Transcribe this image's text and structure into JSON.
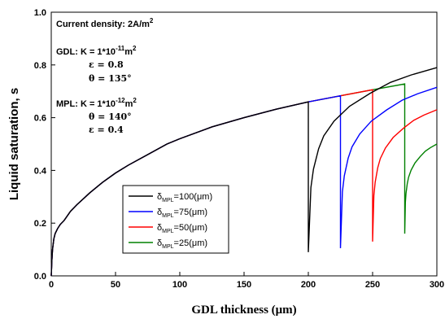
{
  "chart_data": {
    "type": "line",
    "xlabel": "GDL thickness (μm)",
    "ylabel": "Liquid saturation, s",
    "xlim": [
      0,
      300
    ],
    "ylim": [
      0,
      1.0
    ],
    "xticks": [
      "0",
      "50",
      "100",
      "150",
      "200",
      "250",
      "300"
    ],
    "yticks": [
      "0.0",
      "0.2",
      "0.4",
      "0.6",
      "0.8",
      "1.0"
    ],
    "grid": false,
    "legend_position": "bottom-center",
    "annotations": {
      "current_density": "Current density: 2A/m",
      "current_density_sup": "2",
      "gdl_prefix": "GDL: K = 1*10",
      "gdl_k_exp": "-11",
      "gdl_k_unit": "m",
      "gdl_k_unit_exp": "2",
      "gdl_eps": "ε  = 0.8",
      "gdl_theta": "θ = 135°",
      "mpl_prefix": "MPL: K = 1*10",
      "mpl_k_exp": "-12",
      "mpl_k_unit": "m",
      "mpl_k_unit_exp": "2",
      "mpl_theta": "θ = 140°",
      "mpl_eps": "ε = 0.4"
    },
    "legend": [
      {
        "symbol": "δ",
        "sub": "MPL",
        "value": "=100(μm)",
        "color": "#000000"
      },
      {
        "symbol": "δ",
        "sub": "MPL",
        "value": "=75(μm)",
        "color": "#0000ff"
      },
      {
        "symbol": "δ",
        "sub": "MPL",
        "value": "=50(μm)",
        "color": "#ff0000"
      },
      {
        "symbol": "δ",
        "sub": "MPL",
        "value": "=25(μm)",
        "color": "#008000"
      }
    ],
    "series": [
      {
        "delta_mpl": 100,
        "color": "#000000",
        "gdl_end": 200,
        "gdl_end_value": 0.66,
        "drop_value": 0.09,
        "mpl_end_value": 0.79
      },
      {
        "delta_mpl": 75,
        "color": "#0000ff",
        "gdl_end": 225,
        "gdl_end_value": 0.683,
        "drop_value": 0.105,
        "mpl_end_value": 0.715
      },
      {
        "delta_mpl": 50,
        "color": "#ff0000",
        "gdl_end": 250,
        "gdl_end_value": 0.706,
        "drop_value": 0.13,
        "mpl_end_value": 0.63
      },
      {
        "delta_mpl": 25,
        "color": "#008000",
        "gdl_end": 275,
        "gdl_end_value": 0.728,
        "drop_value": 0.16,
        "mpl_end_value": 0.5
      }
    ],
    "gdl_curve": {
      "x": [
        0,
        0.5,
        1,
        2,
        3,
        5,
        7,
        10,
        15,
        20,
        30,
        40,
        50,
        60,
        75,
        90,
        100,
        125,
        150,
        175,
        200,
        225,
        250,
        275
      ],
      "y": [
        0,
        0.06,
        0.1,
        0.14,
        0.16,
        0.18,
        0.195,
        0.21,
        0.245,
        0.27,
        0.315,
        0.355,
        0.39,
        0.42,
        0.46,
        0.5,
        0.52,
        0.565,
        0.6,
        0.632,
        0.66,
        0.683,
        0.706,
        0.728
      ]
    },
    "mpl_curve_x": [
      0,
      0.5,
      1,
      2,
      3,
      5,
      8,
      12,
      16,
      20,
      25
    ],
    "mpl_curve_frac": [
      0,
      0.35,
      0.45,
      0.56,
      0.63,
      0.71,
      0.79,
      0.86,
      0.92,
      0.96,
      1.0
    ]
  }
}
